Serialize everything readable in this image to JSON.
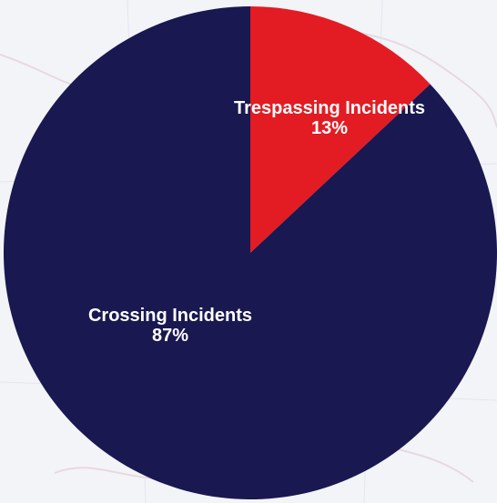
{
  "chart_data": {
    "type": "pie",
    "title": "",
    "slices": [
      {
        "name": "Trespassing Incidents",
        "value": 13,
        "label": "13%",
        "color": "#e31c23"
      },
      {
        "name": "Crossing Incidents",
        "value": 87,
        "label": "87%",
        "color": "#1a1850"
      }
    ],
    "start_angle_deg": 0,
    "direction": "clockwise"
  },
  "theme": {
    "background": "#f3f4f8"
  }
}
